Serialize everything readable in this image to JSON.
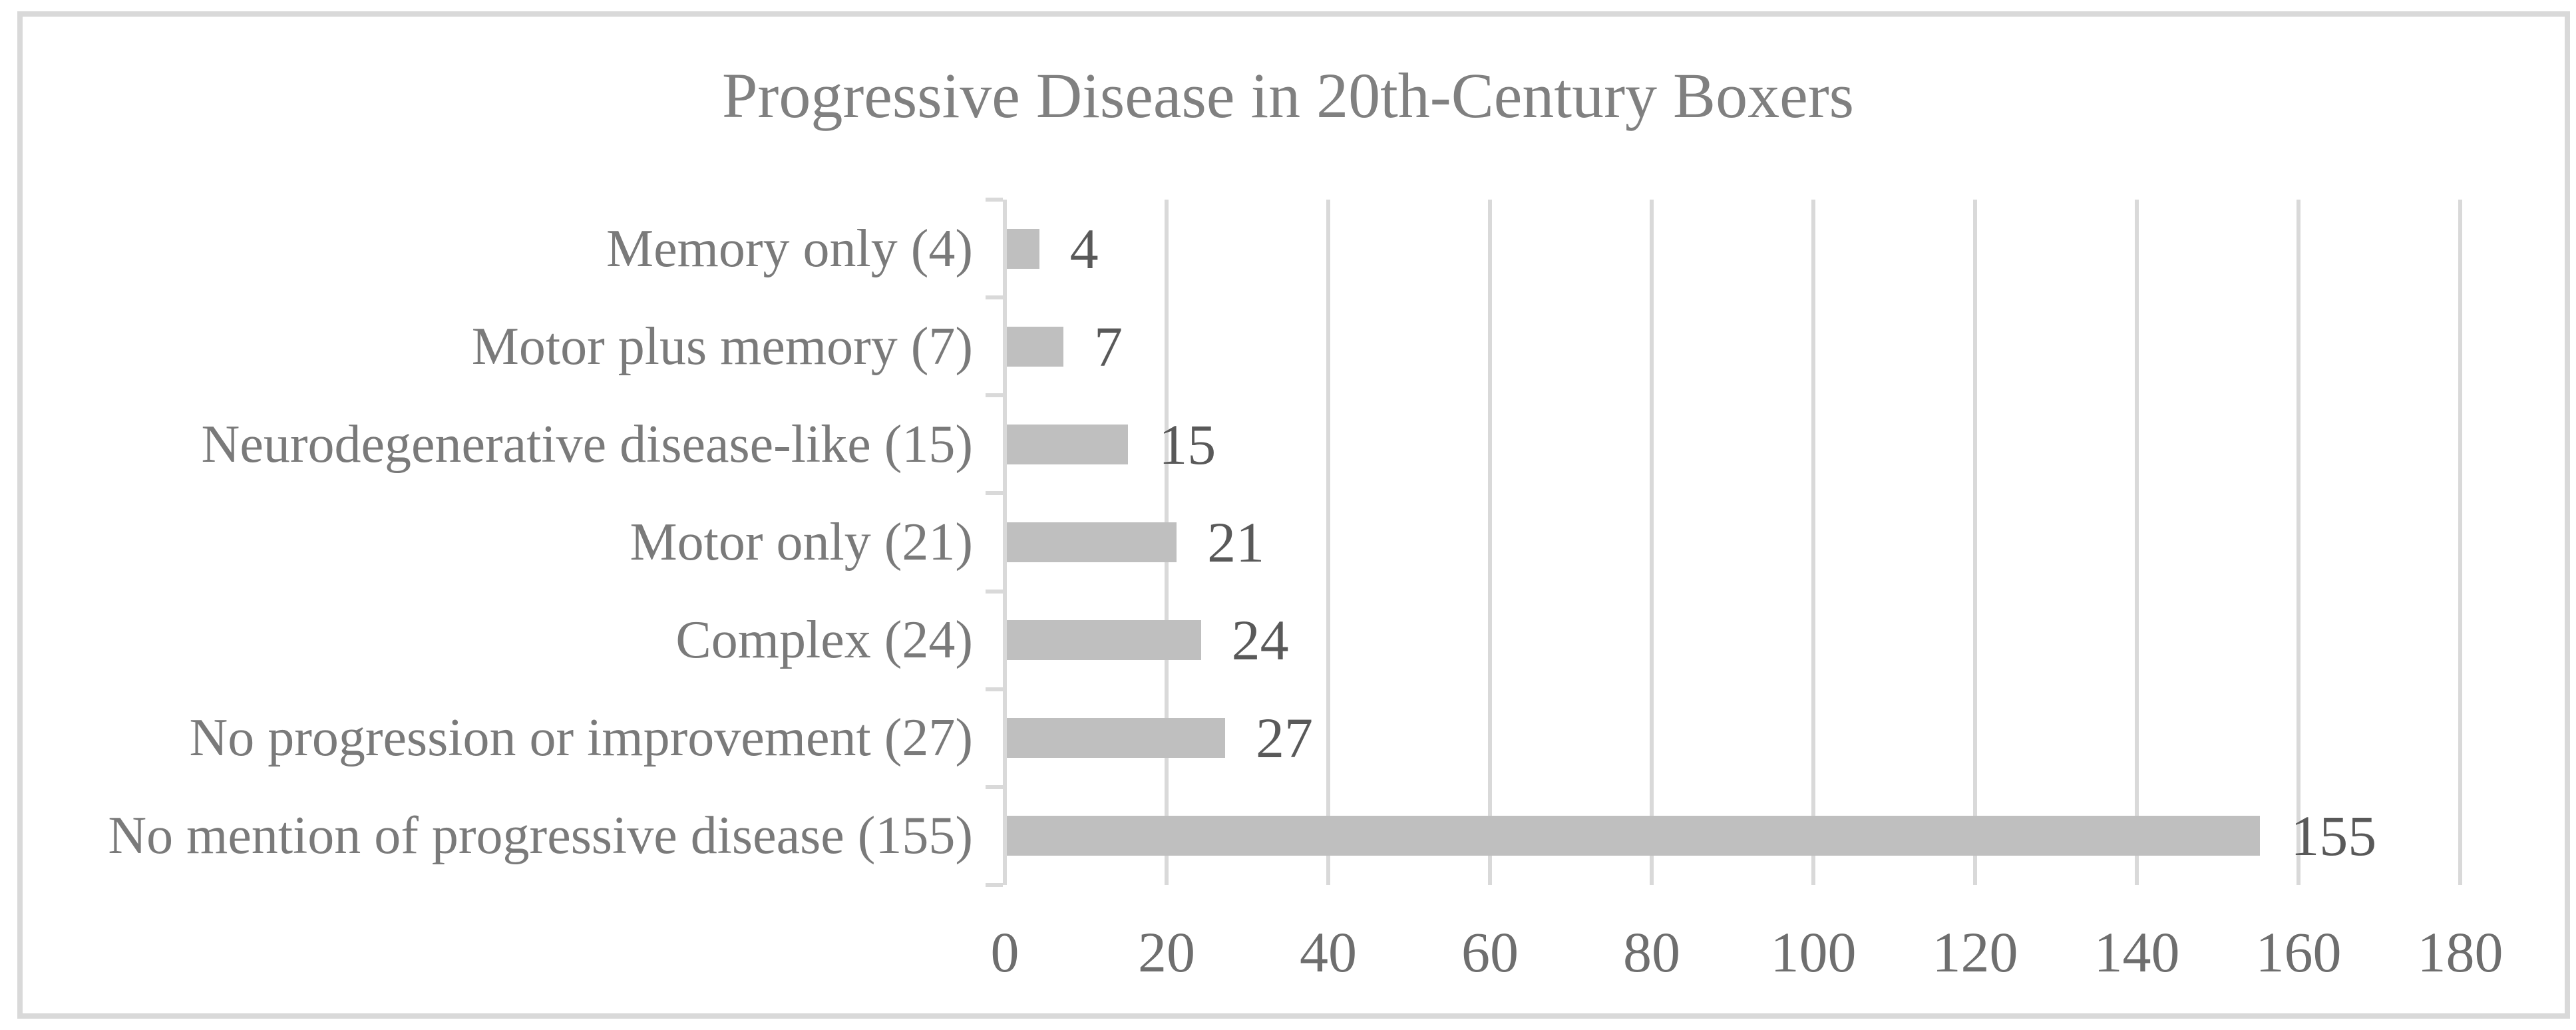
{
  "chart_data": {
    "type": "bar",
    "orientation": "horizontal",
    "title": "Progressive Disease in 20th-Century Boxers",
    "categories": [
      "Memory only (4)",
      "Motor plus memory (7)",
      "Neurodegenerative disease-like (15)",
      "Motor only (21)",
      "Complex (24)",
      "No progression or improvement (27)",
      "No mention of progressive disease (155)"
    ],
    "values": [
      4,
      7,
      15,
      21,
      24,
      27,
      155
    ],
    "data_labels": [
      "4",
      "7",
      "15",
      "21",
      "24",
      "27",
      "155"
    ],
    "xlabel": "",
    "ylabel": "",
    "x_axis": {
      "min": 0,
      "max": 180,
      "tick_interval": 20,
      "tick_values": [
        0,
        20,
        40,
        60,
        80,
        100,
        120,
        140,
        160,
        180
      ],
      "tick_labels": [
        "0",
        "20",
        "40",
        "60",
        "80",
        "100",
        "120",
        "140",
        "160",
        "180"
      ]
    },
    "grid": "vertical major gridlines",
    "legend": "none",
    "colors": {
      "bar": "#bfbfbf",
      "gridline": "#d9d9d9",
      "axis_line": "#d9d9d9",
      "frame_border": "#d9d9d9",
      "background": "#ffffff",
      "title_text": "#808080",
      "category_label_text": "#7a7a7a",
      "tick_label_text": "#6e6e6e",
      "value_label_text": "#595959"
    }
  }
}
